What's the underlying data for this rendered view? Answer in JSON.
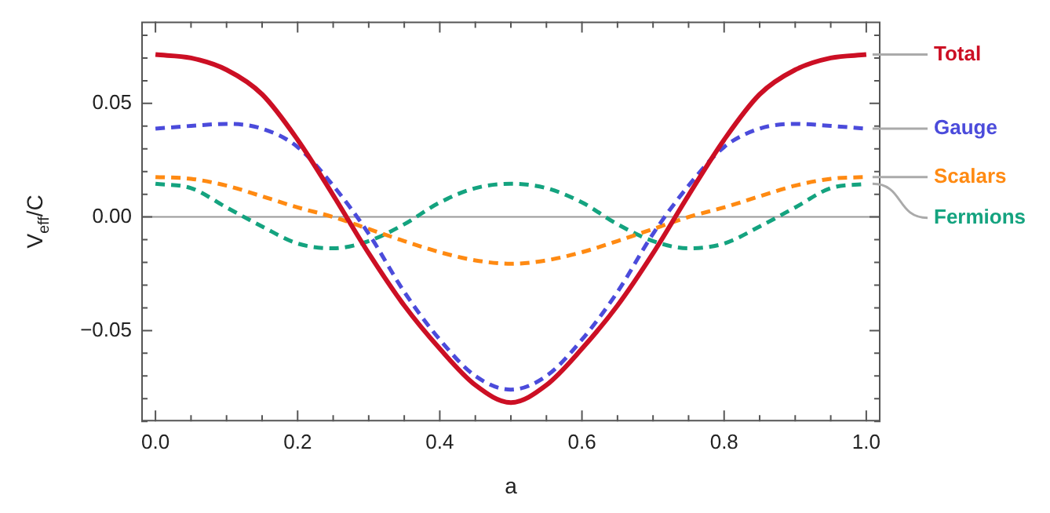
{
  "chart_data": {
    "type": "line",
    "xlabel": "a",
    "ylabel": "V$_{eff}$/C",
    "x": [
      0,
      0.05,
      0.1,
      0.15,
      0.2,
      0.25,
      0.3,
      0.35,
      0.4,
      0.45,
      0.5,
      0.55,
      0.6,
      0.65,
      0.7,
      0.75,
      0.8,
      0.85,
      0.9,
      0.95,
      1
    ],
    "xlim": [
      -0.02,
      1.02
    ],
    "xticks": [
      {
        "value": 0,
        "label": "0.0"
      },
      {
        "value": 0.05,
        "label": null
      },
      {
        "value": 0.2,
        "label": "0.2"
      },
      {
        "value": 0.1,
        "label": null
      },
      {
        "value": 0.15,
        "label": null
      },
      {
        "value": 0.25,
        "label": null
      },
      {
        "value": 0.3,
        "label": null
      },
      {
        "value": 0.35,
        "label": null
      },
      {
        "value": 0.4,
        "label": "0.4"
      },
      {
        "value": 0.45,
        "label": null
      },
      {
        "value": 0.5,
        "label": null
      },
      {
        "value": 0.55,
        "label": null
      },
      {
        "value": 0.6,
        "label": "0.6"
      },
      {
        "value": 0.65,
        "label": null
      },
      {
        "value": 0.7,
        "label": null
      },
      {
        "value": 0.75,
        "label": null
      },
      {
        "value": 0.8,
        "label": "0.8"
      },
      {
        "value": 0.85,
        "label": null
      },
      {
        "value": 0.9,
        "label": null
      },
      {
        "value": 0.95,
        "label": null
      },
      {
        "value": 1,
        "label": "1.0"
      }
    ],
    "ylim": [
      -0.09,
      0.086
    ],
    "yticks": [
      {
        "value": -0.09,
        "label": null
      },
      {
        "value": -0.08,
        "label": null
      },
      {
        "value": -0.07,
        "label": null
      },
      {
        "value": -0.06,
        "label": null
      },
      {
        "value": -0.05,
        "label": "−0.05"
      },
      {
        "value": -0.04,
        "label": null
      },
      {
        "value": -0.03,
        "label": null
      },
      {
        "value": -0.02,
        "label": null
      },
      {
        "value": -0.01,
        "label": null
      },
      {
        "value": 0,
        "label": "0.00"
      },
      {
        "value": 0.01,
        "label": null
      },
      {
        "value": 0.02,
        "label": null
      },
      {
        "value": 0.03,
        "label": null
      },
      {
        "value": 0.04,
        "label": null
      },
      {
        "value": 0.05,
        "label": "0.05"
      },
      {
        "value": 0.06,
        "label": null
      },
      {
        "value": 0.07,
        "label": null
      },
      {
        "value": 0.08,
        "label": null
      }
    ],
    "grid": false,
    "legend": false,
    "marker": "none",
    "ref_lines": [
      {
        "axis": "y",
        "value": 0,
        "color": "#999999"
      }
    ],
    "series": [
      {
        "name": "Total",
        "color": "#cc0f24",
        "line_style": "solid",
        "values": [
          0.0715,
          0.07,
          0.0648,
          0.054,
          0.034,
          0.0096,
          -0.016,
          -0.039,
          -0.058,
          -0.074,
          -0.0817,
          -0.074,
          -0.058,
          -0.039,
          -0.016,
          0.0096,
          0.034,
          0.054,
          0.0648,
          0.07,
          0.0715
        ]
      },
      {
        "name": "Gauge",
        "color": "#4b4bdb",
        "line_style": "dashed",
        "values": [
          0.0389,
          0.0401,
          0.041,
          0.0389,
          0.0308,
          0.0138,
          -0.0074,
          -0.033,
          -0.054,
          -0.07,
          -0.076,
          -0.07,
          -0.054,
          -0.033,
          -0.0074,
          0.0138,
          0.0308,
          0.0389,
          0.041,
          0.0401,
          0.0389
        ]
      },
      {
        "name": "Scalars",
        "color": "#ff8a12",
        "line_style": "dashed",
        "values": [
          0.0176,
          0.0168,
          0.0138,
          0.0091,
          0.0042,
          0,
          -0.0053,
          -0.0106,
          -0.0155,
          -0.0191,
          -0.0206,
          -0.0191,
          -0.0155,
          -0.0106,
          -0.0053,
          0,
          0.0042,
          0.0091,
          0.0138,
          0.0168,
          0.0176
        ]
      },
      {
        "name": "Fermions",
        "color": "#14a37f",
        "line_style": "dashed",
        "values": [
          0.0146,
          0.0127,
          0.0042,
          -0.0042,
          -0.0117,
          -0.0138,
          -0.0106,
          -0.0032,
          0.0064,
          0.0127,
          0.0146,
          0.0127,
          0.0064,
          -0.0032,
          -0.0106,
          -0.0138,
          -0.0117,
          -0.0042,
          0.0042,
          0.0127,
          0.0146
        ]
      }
    ]
  }
}
